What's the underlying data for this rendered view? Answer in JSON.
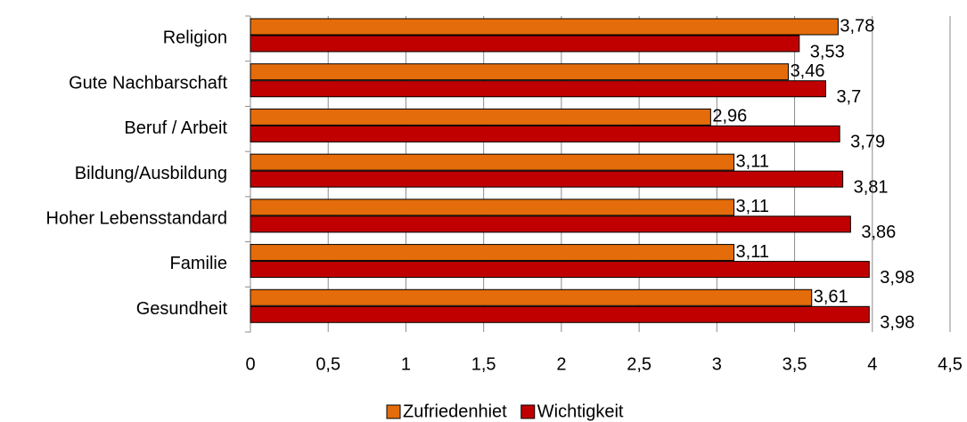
{
  "chart_data": {
    "type": "bar",
    "orientation": "horizontal",
    "categories": [
      "Religion",
      "Gute Nachbarschaft",
      "Beruf / Arbeit",
      "Bildung/Ausbildung",
      "Hoher Lebensstandard",
      "Familie",
      "Gesundheit"
    ],
    "series": [
      {
        "name": "Zufriedenhiet",
        "color": "#e46c0a",
        "values": [
          3.78,
          3.46,
          2.96,
          3.11,
          3.11,
          3.11,
          3.61
        ],
        "value_labels": [
          "3,78",
          "3,46",
          "2,96",
          "3,11",
          "3,11",
          "3,11",
          "3,61"
        ]
      },
      {
        "name": "Wichtigkeit",
        "color": "#c00000",
        "values": [
          3.53,
          3.7,
          3.79,
          3.81,
          3.86,
          3.98,
          3.98
        ],
        "value_labels": [
          "3,53",
          "3,7",
          "3,79",
          "3,81",
          "3,86",
          "3,98",
          "3,98"
        ]
      }
    ],
    "xlim": [
      0,
      4.5
    ],
    "xticks": [
      0,
      {
        "value": 0.5,
        "label": "0,5"
      },
      1,
      {
        "value": 1.5,
        "label": "1,5"
      },
      2,
      {
        "value": 2.5,
        "label": "2,5"
      },
      3,
      {
        "value": 3.5,
        "label": "3,5"
      },
      4,
      {
        "value": 4.5,
        "label": "4,5"
      }
    ],
    "grid": true,
    "legend": "bottom"
  }
}
